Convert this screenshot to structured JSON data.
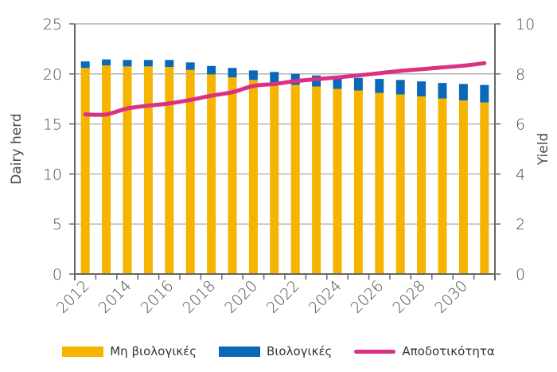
{
  "chart_data": {
    "type": "bar",
    "stacked": true,
    "title": "",
    "xlabel": "",
    "ylabel": "Dairy herd",
    "y2label": "Yield",
    "ylim": [
      0,
      25
    ],
    "y2lim": [
      0,
      10
    ],
    "yticks": [
      "0",
      "5",
      "10",
      "15",
      "20",
      "25"
    ],
    "y2ticks": [
      "0",
      "2",
      "4",
      "6",
      "8",
      "10"
    ],
    "grid": true,
    "categories": [
      "2012",
      "2013",
      "2014",
      "2015",
      "2016",
      "2017",
      "2018",
      "2019",
      "2020",
      "2021",
      "2022",
      "2023",
      "2024",
      "2025",
      "2026",
      "2027",
      "2028",
      "2029",
      "2030",
      "2031"
    ],
    "xtick_labels": [
      "2012",
      "2014",
      "2016",
      "2018",
      "2020",
      "2022",
      "2024",
      "2026",
      "2028",
      "2030"
    ],
    "series": [
      {
        "name": "Μη βιολογικές",
        "type": "bar",
        "axis": "left",
        "color": "#F5B400",
        "values": [
          20.6,
          20.85,
          20.75,
          20.75,
          20.7,
          20.4,
          19.95,
          19.65,
          19.4,
          19.05,
          18.9,
          18.75,
          18.5,
          18.35,
          18.1,
          17.95,
          17.75,
          17.55,
          17.35,
          17.15
        ]
      },
      {
        "name": "Βιολογικές",
        "type": "bar",
        "axis": "left",
        "color": "#0A68B8",
        "values": [
          0.65,
          0.6,
          0.65,
          0.65,
          0.7,
          0.75,
          0.85,
          0.95,
          0.95,
          1.15,
          1.1,
          1.1,
          1.2,
          1.25,
          1.4,
          1.45,
          1.5,
          1.55,
          1.65,
          1.75
        ]
      },
      {
        "name": "Αποδοτικότητα",
        "type": "line",
        "axis": "right",
        "color": "#DB3083",
        "values": [
          6.38,
          6.38,
          6.62,
          6.73,
          6.82,
          6.96,
          7.13,
          7.27,
          7.52,
          7.6,
          7.71,
          7.79,
          7.86,
          7.94,
          8.03,
          8.12,
          8.19,
          8.26,
          8.33,
          8.43
        ]
      }
    ],
    "legend_position": "bottom"
  }
}
